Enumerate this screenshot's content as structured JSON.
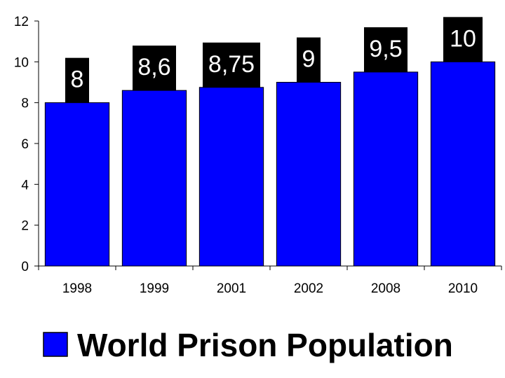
{
  "chart_data": {
    "type": "bar",
    "categories": [
      "1998",
      "1999",
      "2001",
      "2002",
      "2008",
      "2010"
    ],
    "series": [
      {
        "name": "World Prison Population",
        "values": [
          8,
          8.6,
          8.75,
          9,
          9.5,
          10
        ],
        "data_labels": [
          "8",
          "8,6",
          "8,75",
          "9",
          "9,5",
          "10"
        ],
        "color": "#0000ff"
      }
    ],
    "ylim": [
      0,
      12
    ],
    "yticks": [
      "0",
      "2",
      "4",
      "6",
      "8",
      "10",
      "12"
    ],
    "grid": false,
    "legend_position": "bottom",
    "data_label_background": "#000000",
    "data_label_color": "#ffffff"
  }
}
